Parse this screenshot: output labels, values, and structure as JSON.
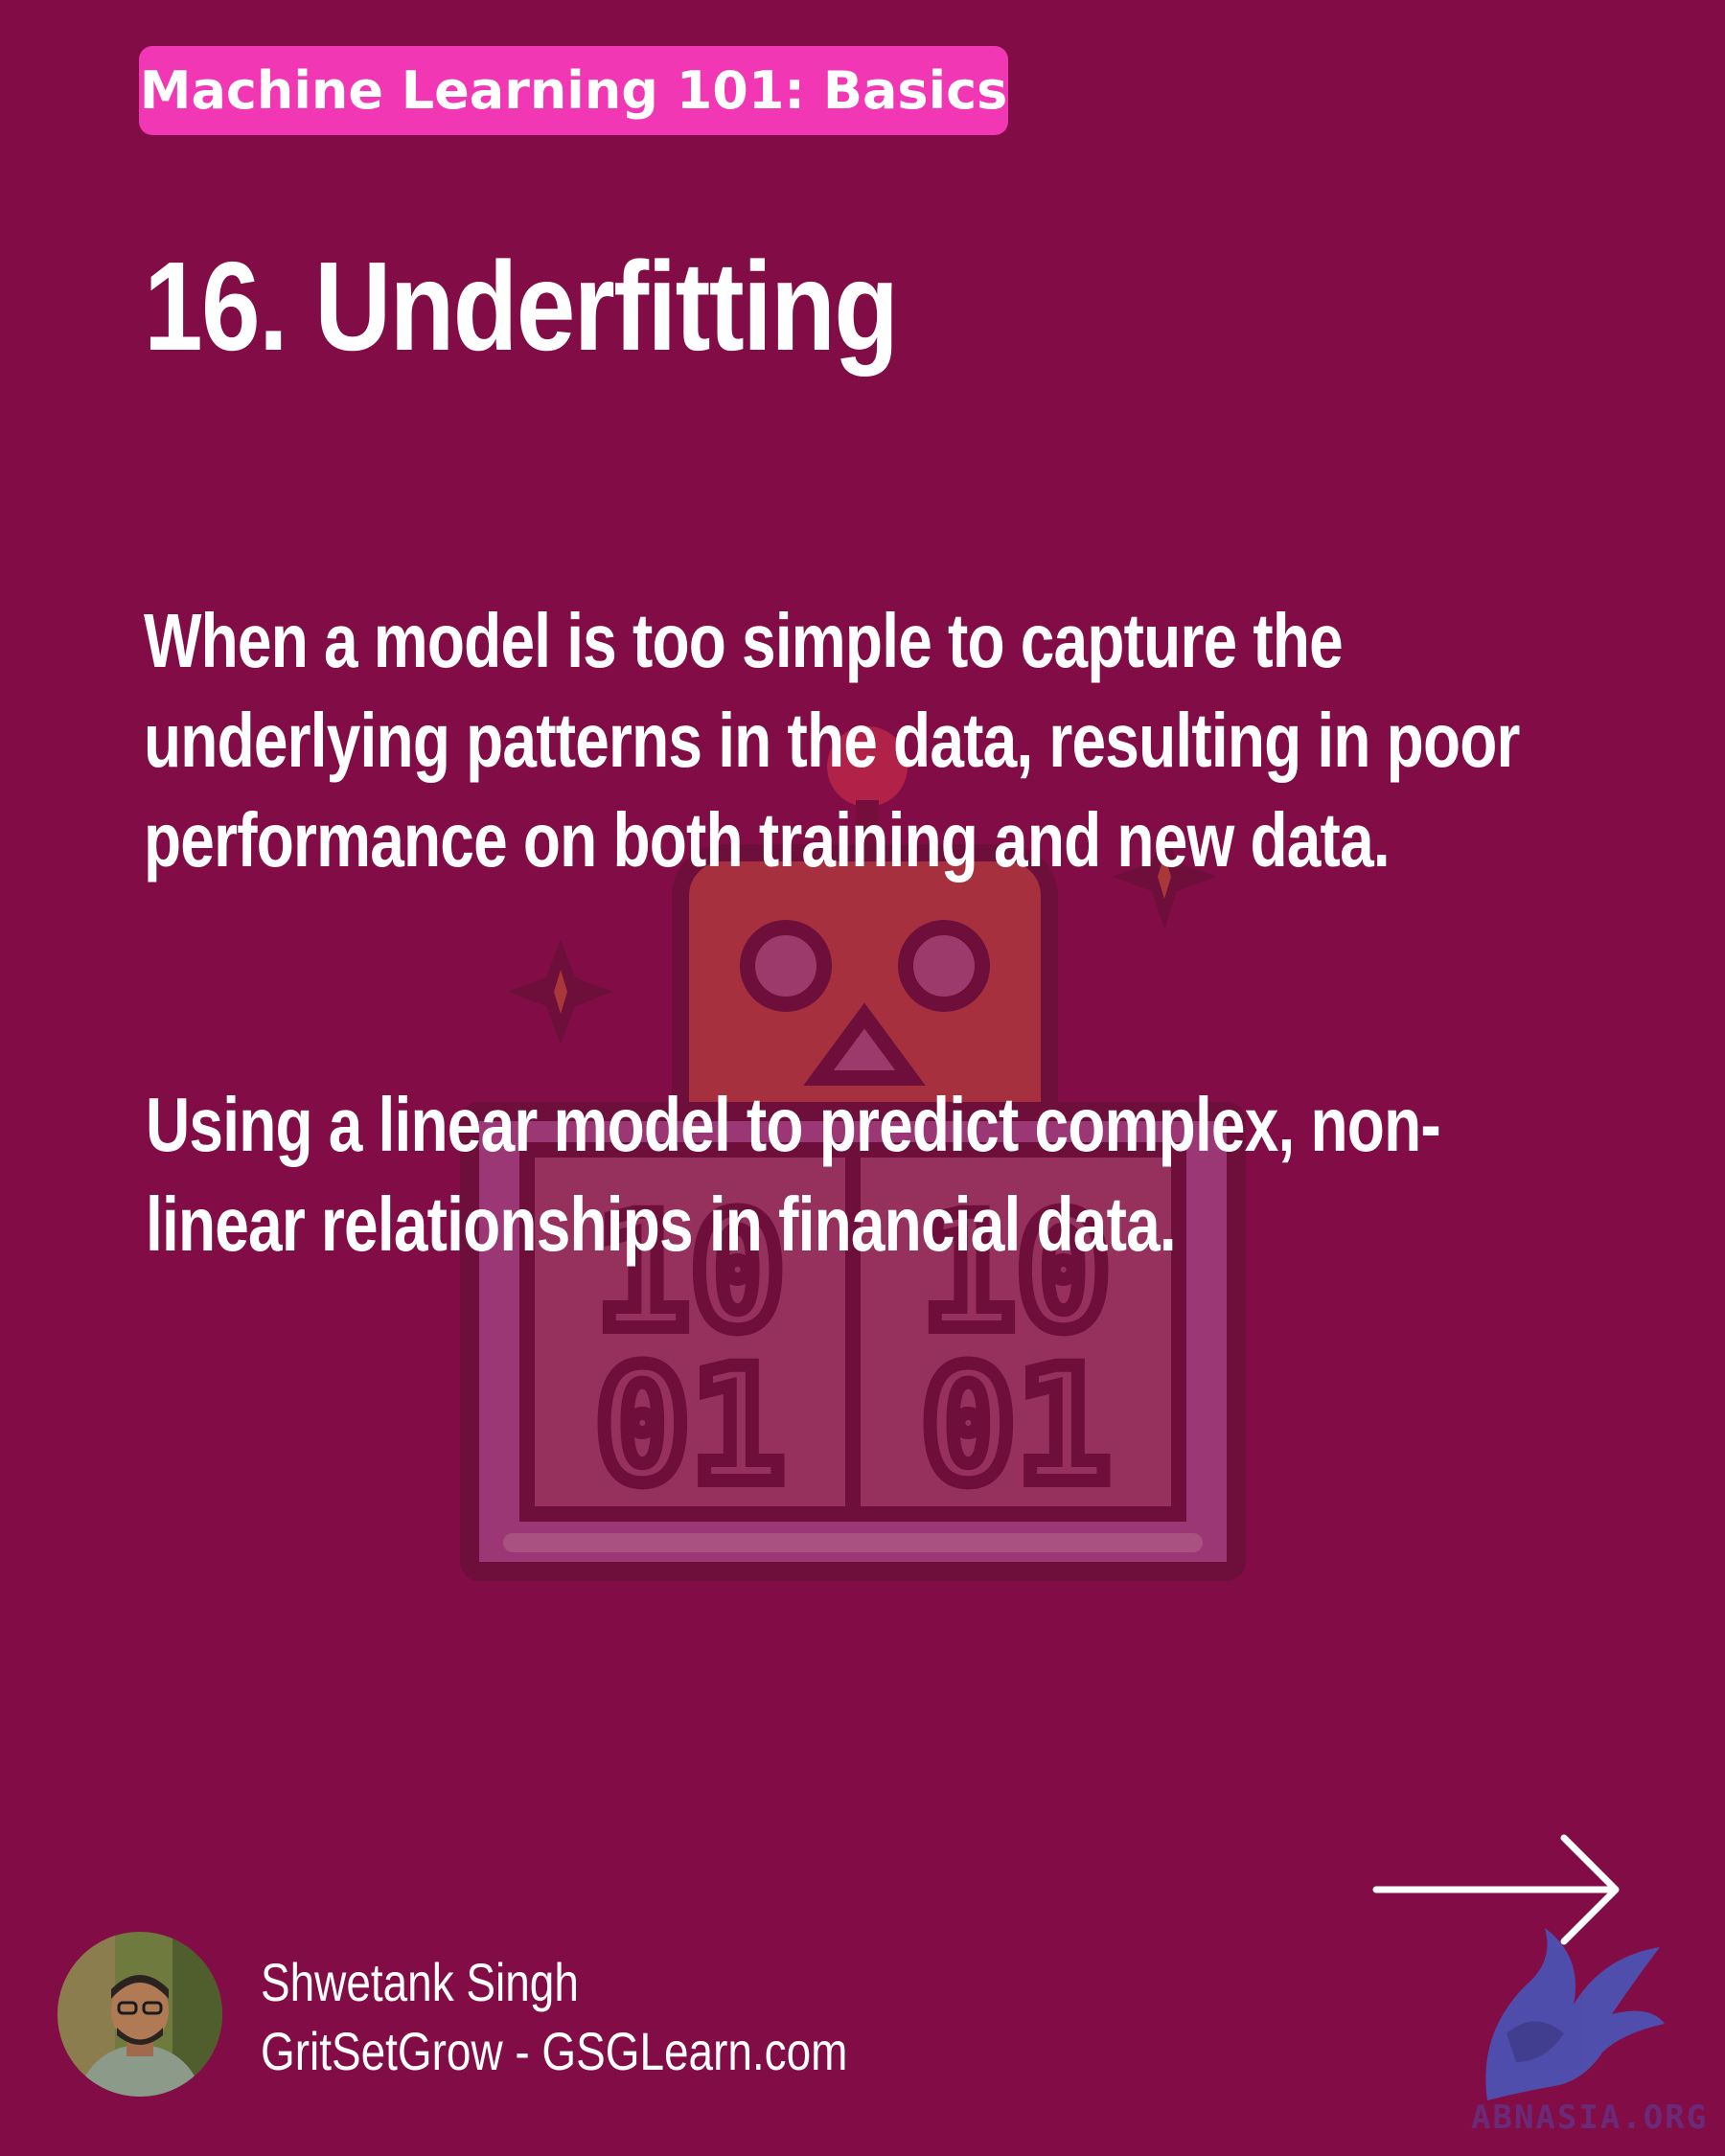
{
  "header": {
    "series_tag": "Machine Learning 101: Basics",
    "title": "16. Underfitting"
  },
  "content": {
    "definition": "When a model is too simple to capture the underlying patterns in the data, resulting in poor performance on both training and new data.",
    "example": "Using a linear model to predict complex, non-linear relationships in financial data."
  },
  "illustration": {
    "icon": "robot-binary-icon",
    "digits_top_left": "10",
    "digits_top_right": "10",
    "digits_bottom_left": "01",
    "digits_bottom_right": "01"
  },
  "footer": {
    "author_name": "Shwetank Singh",
    "author_site": "GritSetGrow - GSGLearn.com",
    "next_icon": "arrow-right-icon",
    "watermark_text": "ABNASIA.ORG"
  },
  "colors": {
    "background": "#820d46",
    "tag_background": "#f237b4",
    "text": "#ffffff"
  }
}
